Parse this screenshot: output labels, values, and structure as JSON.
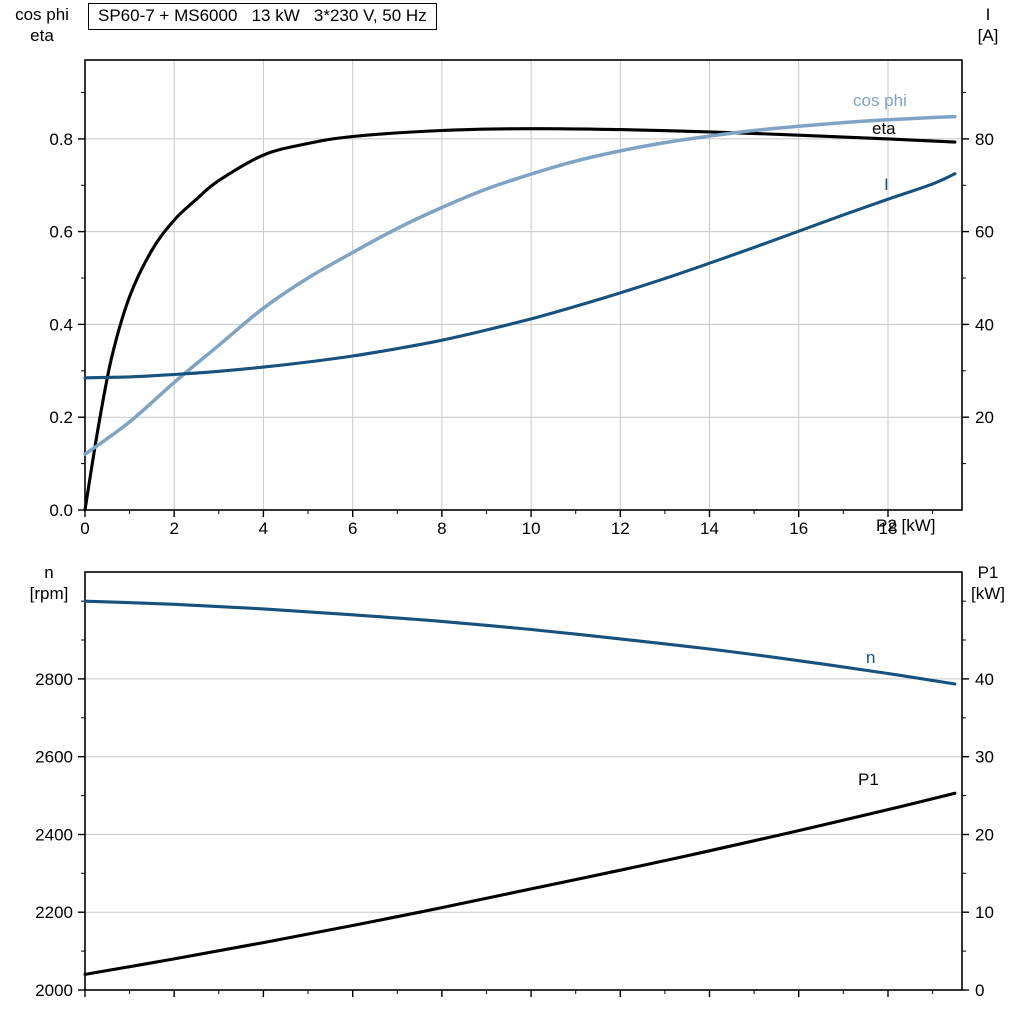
{
  "page": {
    "background": "#ffffff"
  },
  "colors": {
    "grid": "#c8c8c8",
    "axis": "#000000",
    "eta": "#000000",
    "cos_phi": "#7fa3c4",
    "current": "#17517e"
  },
  "chart_data": [
    {
      "type": "line",
      "title": "SP60-7 + MS6000   13 kW   3*230 V, 50 Hz",
      "x_axis": {
        "label": "P2 [kW]",
        "range": [
          0,
          19.66
        ],
        "major_ticks": [
          0,
          2,
          4,
          6,
          8,
          10,
          12,
          14,
          16,
          18
        ],
        "tick_labels": [
          "0",
          "2",
          "4",
          "6",
          "8",
          "10",
          "12",
          "14",
          "16",
          "18"
        ],
        "minor_step": 1,
        "show_tick_labels": true,
        "vertical_grid": true
      },
      "y_left": {
        "title_lines": [
          "cos phi",
          "eta"
        ],
        "range": [
          0,
          0.97
        ],
        "major_ticks": [
          0,
          0.2,
          0.4,
          0.6,
          0.8
        ],
        "tick_labels": [
          "0.0",
          "0.2",
          "0.4",
          "0.6",
          "0.8"
        ],
        "minor_step": 0.1
      },
      "y_right": {
        "title_lines": [
          "I",
          "[A]"
        ],
        "range": [
          0,
          97
        ],
        "major_ticks": [
          20,
          40,
          60,
          80
        ],
        "tick_labels": [
          "20",
          "40",
          "60",
          "80"
        ],
        "minor_step": 10
      },
      "series": [
        {
          "name": "eta",
          "label": "eta",
          "axis": "left",
          "color": "#000000",
          "x": [
            0,
            0.3,
            0.6,
            1,
            1.5,
            2,
            2.5,
            3,
            4,
            5,
            6,
            8,
            10,
            12,
            14,
            16,
            18,
            19.5
          ],
          "y": [
            0,
            0.18,
            0.33,
            0.46,
            0.56,
            0.625,
            0.67,
            0.71,
            0.765,
            0.79,
            0.805,
            0.818,
            0.822,
            0.82,
            0.815,
            0.808,
            0.8,
            0.793
          ]
        },
        {
          "name": "cos phi",
          "label": "cos phi",
          "axis": "left",
          "color": "#7fa3c4",
          "x": [
            0,
            1,
            2,
            3,
            4,
            5,
            6,
            7,
            8,
            9,
            10,
            11,
            12,
            13,
            14,
            15,
            16,
            17,
            18,
            19,
            19.5
          ],
          "y": [
            0.12,
            0.19,
            0.275,
            0.355,
            0.435,
            0.5,
            0.555,
            0.607,
            0.652,
            0.692,
            0.724,
            0.752,
            0.774,
            0.792,
            0.806,
            0.818,
            0.827,
            0.835,
            0.841,
            0.846,
            0.848
          ]
        },
        {
          "name": "I",
          "label": "I",
          "axis": "right",
          "color": "#17517e",
          "x": [
            0,
            1,
            2,
            3,
            4,
            5,
            6,
            7,
            8,
            9,
            10,
            11,
            12,
            13,
            14,
            15,
            16,
            17,
            18,
            19,
            19.5
          ],
          "y": [
            28.5,
            28.7,
            29.2,
            29.9,
            30.8,
            31.9,
            33.2,
            34.8,
            36.6,
            38.8,
            41.2,
            43.9,
            46.8,
            49.9,
            53.2,
            56.6,
            60.1,
            63.6,
            67.0,
            70.3,
            72.5
          ]
        }
      ]
    },
    {
      "type": "line",
      "title": "",
      "x_axis": {
        "label": "",
        "range": [
          0,
          19.66
        ],
        "major_ticks": [
          0,
          2,
          4,
          6,
          8,
          10,
          12,
          14,
          16,
          18
        ],
        "tick_labels": [],
        "minor_step": 1,
        "show_tick_labels": false,
        "vertical_grid": false
      },
      "y_left": {
        "title_lines": [
          "n",
          "[rpm]"
        ],
        "range": [
          2000,
          3075
        ],
        "major_ticks": [
          2000,
          2200,
          2400,
          2600,
          2800
        ],
        "tick_labels": [
          "2000",
          "2200",
          "2400",
          "2600",
          "2800"
        ],
        "minor_step": 100
      },
      "y_right": {
        "title_lines": [
          "P1",
          "[kW]"
        ],
        "range": [
          0,
          53.75
        ],
        "major_ticks": [
          0,
          10,
          20,
          30,
          40
        ],
        "tick_labels": [
          "0",
          "10",
          "20",
          "30",
          "40"
        ],
        "minor_step": 5
      },
      "series": [
        {
          "name": "n",
          "label": "n",
          "axis": "left",
          "color": "#17517e",
          "x": [
            0,
            2,
            4,
            6,
            8,
            10,
            12,
            14,
            16,
            18,
            19.5
          ],
          "y": [
            3000,
            2992,
            2980,
            2965,
            2948,
            2927,
            2903,
            2877,
            2847,
            2814,
            2787
          ]
        },
        {
          "name": "P1",
          "label": "P1",
          "axis": "right",
          "color": "#000000",
          "x": [
            0,
            2,
            4,
            6,
            8,
            10,
            12,
            14,
            16,
            18,
            19.5
          ],
          "y": [
            2.0,
            4.0,
            6.1,
            8.3,
            10.6,
            13.0,
            15.4,
            17.9,
            20.5,
            23.2,
            25.3
          ]
        }
      ]
    }
  ]
}
